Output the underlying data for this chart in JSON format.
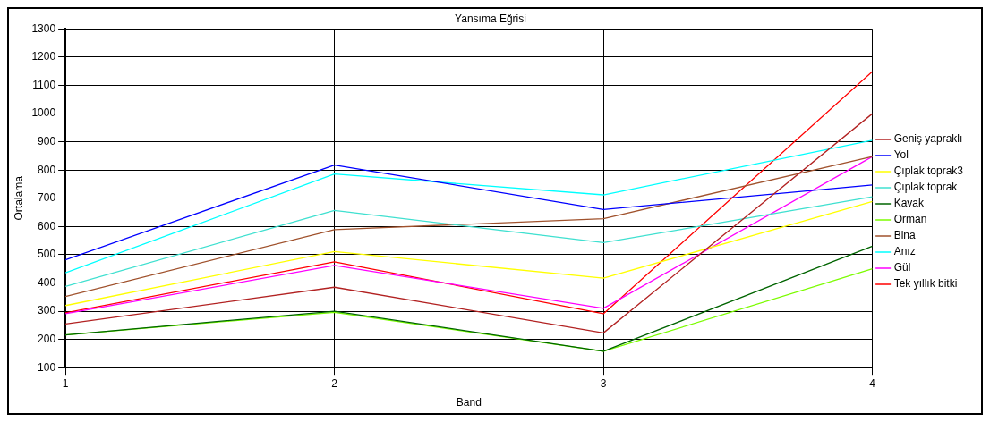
{
  "chart_data": {
    "type": "line",
    "title": "Yansıma Eğrisi",
    "xlabel": "Band",
    "ylabel": "Ortalama",
    "x": [
      1,
      2,
      3,
      4
    ],
    "xlim": [
      1,
      4
    ],
    "xticks": [
      1,
      2,
      3,
      4
    ],
    "ylim": [
      100,
      1300
    ],
    "yticks": [
      100,
      200,
      300,
      400,
      500,
      600,
      700,
      800,
      900,
      1000,
      1100,
      1200,
      1300
    ],
    "grid": true,
    "legend": "right",
    "marker": "none",
    "line_style": "solid",
    "series": [
      {
        "name": "Geniş yapraklı",
        "color": "#b22222",
        "values": [
          255,
          385,
          223,
          1000
        ]
      },
      {
        "name": "Yol",
        "color": "#0000ff",
        "values": [
          482,
          818,
          660,
          747
        ]
      },
      {
        "name": "Çıplak toprak3",
        "color": "#ffff00",
        "values": [
          320,
          511,
          417,
          689
        ]
      },
      {
        "name": "Çıplak toprak",
        "color": "#40e0d0",
        "values": [
          388,
          657,
          543,
          705
        ]
      },
      {
        "name": "Kavak",
        "color": "#006400",
        "values": [
          216,
          300,
          158,
          530
        ]
      },
      {
        "name": "Orman",
        "color": "#7cfc00",
        "values": [
          216,
          296,
          158,
          450
        ]
      },
      {
        "name": "Bina",
        "color": "#a0522d",
        "values": [
          352,
          589,
          628,
          848
        ]
      },
      {
        "name": "Anız",
        "color": "#00ffff",
        "values": [
          436,
          786,
          712,
          906
        ]
      },
      {
        "name": "Gül",
        "color": "#ff00ff",
        "values": [
          291,
          462,
          310,
          848
        ]
      },
      {
        "name": "Tek yıllık bitki",
        "color": "#ff0000",
        "values": [
          294,
          475,
          291,
          1149
        ]
      }
    ]
  }
}
